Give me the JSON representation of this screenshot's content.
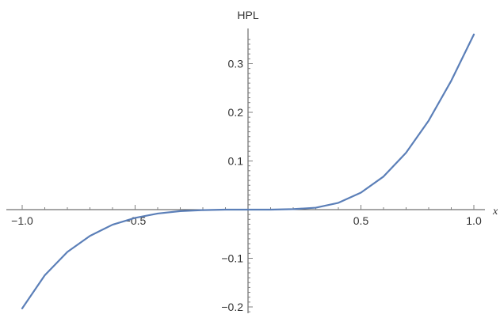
{
  "chart_data": {
    "type": "line",
    "ylabel": "HPL",
    "xlabel": "x",
    "xlim": [
      -1.0,
      1.0
    ],
    "ylim": [
      -0.2,
      0.35
    ],
    "x_major_ticks": [
      {
        "value": -1.0,
        "label": "−1.0"
      },
      {
        "value": -0.5,
        "label": "−0.5"
      },
      {
        "value": 0.5,
        "label": "0.5"
      },
      {
        "value": 1.0,
        "label": "1.0"
      }
    ],
    "y_major_ticks": [
      {
        "value": -0.2,
        "label": "−0.2"
      },
      {
        "value": -0.1,
        "label": "−0.1"
      },
      {
        "value": 0.1,
        "label": "0.1"
      },
      {
        "value": 0.2,
        "label": "0.2"
      },
      {
        "value": 0.3,
        "label": "0.3"
      }
    ],
    "grid": false,
    "series": [
      {
        "color": "#5b7fb8",
        "x": [
          -1.0,
          -0.9,
          -0.8,
          -0.7,
          -0.6,
          -0.5,
          -0.4,
          -0.3,
          -0.2,
          -0.1,
          0.0,
          0.1,
          0.2,
          0.3,
          0.4,
          0.5,
          0.6,
          0.7,
          0.8,
          0.9,
          1.0
        ],
        "y": [
          -0.203,
          -0.135,
          -0.087,
          -0.054,
          -0.031,
          -0.017,
          -0.008,
          -0.003,
          -0.001,
          0.0,
          0.0,
          0.0,
          0.001,
          0.004,
          0.014,
          0.035,
          0.068,
          0.117,
          0.183,
          0.265,
          0.36
        ]
      }
    ]
  }
}
